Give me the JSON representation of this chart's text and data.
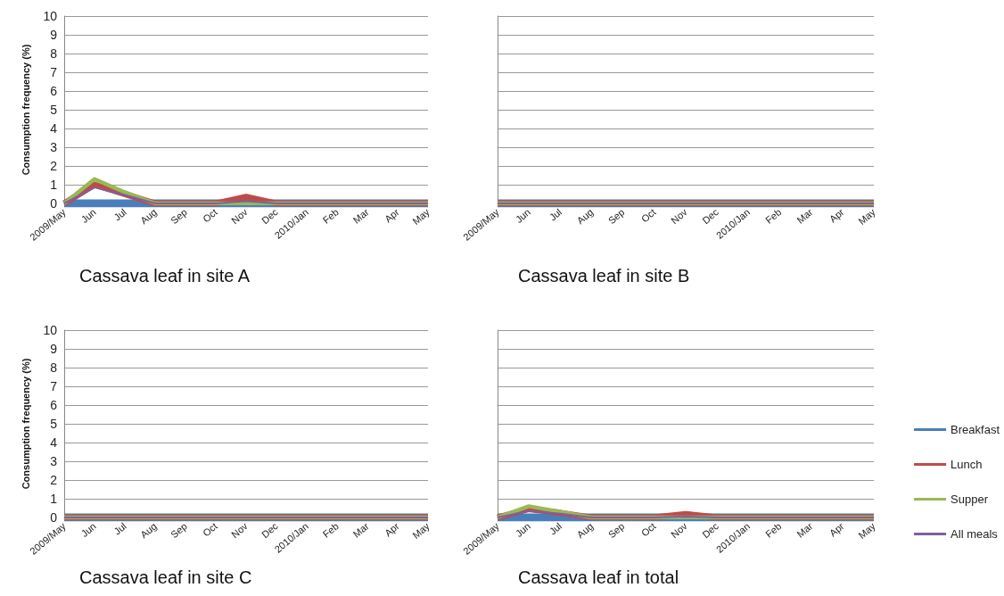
{
  "chart_data": [
    {
      "type": "line",
      "title": "Cassava leaf in site A",
      "ylabel": "Consumption frequency (%)",
      "categories": [
        "2009/May",
        "Jun",
        "Jul",
        "Aug",
        "Sep",
        "Oct",
        "Nov",
        "Dec",
        "2010/Jan",
        "Feb",
        "Mar",
        "Apr",
        "May"
      ],
      "ylim": [
        0,
        10
      ],
      "yticks": [
        0,
        1,
        2,
        3,
        4,
        5,
        6,
        7,
        8,
        9,
        10
      ],
      "grid": "y",
      "legend": false,
      "marker": "none",
      "line_style": "solid",
      "series": [
        {
          "color": "#4a7ebb",
          "values": [
            0,
            0,
            0,
            0,
            0,
            0,
            0,
            0,
            0,
            0,
            0,
            0,
            0
          ]
        },
        {
          "color": "#be4b48",
          "values": [
            0,
            1.0,
            0.5,
            0,
            0,
            0,
            0.35,
            0,
            0,
            0,
            0,
            0,
            0
          ]
        },
        {
          "color": "#98b954",
          "values": [
            0,
            1.3,
            0.6,
            0,
            0,
            0,
            0,
            0,
            0,
            0,
            0,
            0,
            0
          ]
        },
        {
          "color": "#7d60a0",
          "values": [
            0,
            0.85,
            0.45,
            0,
            0,
            0,
            0.12,
            0,
            0,
            0,
            0,
            0,
            0
          ]
        }
      ]
    },
    {
      "type": "line",
      "title": "Cassava leaf in site B",
      "categories": [
        "2009/May",
        "Jun",
        "Jul",
        "Aug",
        "Sep",
        "Oct",
        "Nov",
        "Dec",
        "2010/Jan",
        "Feb",
        "Mar",
        "Apr",
        "May"
      ],
      "ylim": [
        0,
        10
      ],
      "yticks": [
        0,
        1,
        2,
        3,
        4,
        5,
        6,
        7,
        8,
        9,
        10
      ],
      "tick_labels": "x",
      "grid": "y",
      "legend": false,
      "marker": "none",
      "line_style": "solid",
      "series": [
        {
          "color": "#4a7ebb",
          "values": [
            0,
            0,
            0,
            0,
            0,
            0,
            0,
            0,
            0,
            0,
            0,
            0,
            0
          ]
        },
        {
          "color": "#be4b48",
          "values": [
            0,
            0,
            0,
            0,
            0,
            0,
            0,
            0,
            0,
            0,
            0,
            0,
            0
          ]
        },
        {
          "color": "#98b954",
          "values": [
            0,
            0,
            0,
            0,
            0,
            0,
            0,
            0,
            0,
            0,
            0,
            0,
            0
          ]
        },
        {
          "color": "#7d60a0",
          "values": [
            0,
            0,
            0,
            0,
            0,
            0,
            0,
            0,
            0,
            0,
            0,
            0,
            0
          ]
        }
      ]
    },
    {
      "type": "line",
      "title": "Cassava leaf in site C",
      "ylabel": "Consumption frequency (%)",
      "categories": [
        "2009/May",
        "Jun",
        "Jul",
        "Aug",
        "Sep",
        "Oct",
        "Nov",
        "Dec",
        "2010/Jan",
        "Feb",
        "Mar",
        "Apr",
        "May"
      ],
      "ylim": [
        0,
        10
      ],
      "yticks": [
        0,
        1,
        2,
        3,
        4,
        5,
        6,
        7,
        8,
        9,
        10
      ],
      "grid": "y",
      "legend": false,
      "marker": "none",
      "line_style": "solid",
      "series": [
        {
          "color": "#4a7ebb",
          "values": [
            0,
            0,
            0,
            0,
            0,
            0,
            0,
            0,
            0,
            0,
            0,
            0,
            0
          ]
        },
        {
          "color": "#be4b48",
          "values": [
            0,
            0,
            0,
            0,
            0,
            0,
            0,
            0,
            0,
            0,
            0,
            0,
            0
          ]
        },
        {
          "color": "#98b954",
          "values": [
            0,
            0,
            0,
            0,
            0,
            0,
            0,
            0,
            0,
            0,
            0,
            0,
            0
          ]
        },
        {
          "color": "#7d60a0",
          "values": [
            0,
            0,
            0,
            0,
            0,
            0,
            0,
            0,
            0,
            0,
            0,
            0,
            0
          ]
        }
      ]
    },
    {
      "type": "line",
      "title": "Cassava leaf in total",
      "categories": [
        "2009/May",
        "Jun",
        "Jul",
        "Aug",
        "Sep",
        "Oct",
        "Nov",
        "Dec",
        "2010/Jan",
        "Feb",
        "Mar",
        "Apr",
        "May"
      ],
      "ylim": [
        0,
        10
      ],
      "yticks": [
        0,
        1,
        2,
        3,
        4,
        5,
        6,
        7,
        8,
        9,
        10
      ],
      "tick_labels": "x",
      "grid": "y",
      "legend": "right",
      "marker": "none",
      "line_style": "solid",
      "series": [
        {
          "name": "Breakfast",
          "color": "#4a7ebb",
          "values": [
            0,
            0,
            0,
            0,
            0,
            0,
            0,
            0,
            0,
            0,
            0,
            0,
            0
          ]
        },
        {
          "name": "Lunch",
          "color": "#be4b48",
          "values": [
            0,
            0.45,
            0.25,
            0,
            0,
            0,
            0.18,
            0,
            0,
            0,
            0,
            0,
            0
          ]
        },
        {
          "name": "Supper",
          "color": "#98b954",
          "values": [
            0,
            0.6,
            0.3,
            0,
            0,
            0,
            0,
            0,
            0,
            0,
            0,
            0,
            0
          ]
        },
        {
          "name": "All meals",
          "color": "#7d60a0",
          "values": [
            0,
            0.35,
            0.2,
            0,
            0,
            0,
            0.05,
            0,
            0,
            0,
            0,
            0,
            0
          ]
        }
      ]
    }
  ]
}
